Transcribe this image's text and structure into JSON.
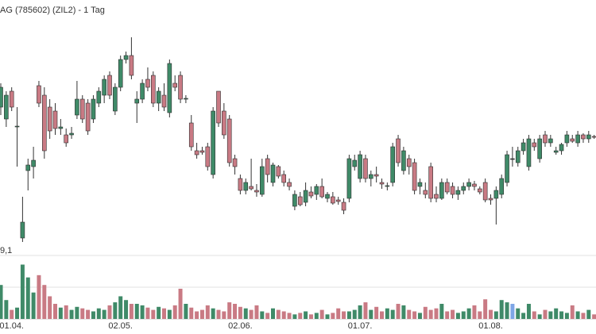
{
  "chart_data": {
    "type": "candlestick",
    "title": "AG (785602) (ZIL2) - 1 Tag",
    "volume_label": "9,1",
    "categories": [
      null,
      null,
      "01.04.",
      null,
      null,
      null,
      null,
      null,
      null,
      null,
      null,
      null,
      null,
      null,
      null,
      null,
      null,
      null,
      null,
      null,
      null,
      null,
      "02.05.",
      null,
      null,
      null,
      null,
      null,
      null,
      null,
      null,
      null,
      null,
      null,
      null,
      null,
      null,
      null,
      null,
      null,
      null,
      null,
      null,
      null,
      "02.06.",
      null,
      null,
      null,
      null,
      null,
      null,
      null,
      null,
      null,
      null,
      null,
      null,
      null,
      null,
      null,
      null,
      null,
      null,
      null,
      null,
      null,
      "01.07.",
      null,
      null,
      null,
      null,
      null,
      null,
      null,
      null,
      null,
      null,
      null,
      null,
      null,
      null,
      null,
      null,
      null,
      null,
      null,
      null,
      null,
      null,
      null,
      "01.08.",
      null,
      null,
      null,
      null,
      null,
      null,
      null,
      null,
      null,
      null,
      null,
      null,
      null,
      null,
      null,
      null,
      null,
      null,
      null
    ],
    "open": [
      185,
      170,
      205,
      160,
      20,
      105,
      110,
      212,
      200,
      185,
      180,
      158,
      150,
      150,
      175,
      195,
      190,
      170,
      190,
      200,
      225,
      180,
      210,
      245,
      250,
      190,
      195,
      220,
      225,
      190,
      200,
      178,
      215,
      225,
      195,
      165,
      130,
      130,
      135,
      100,
      205,
      180,
      170,
      120,
      95,
      80,
      85,
      80,
      75,
      120,
      90,
      110,
      100,
      90,
      60,
      72,
      65,
      78,
      75,
      85,
      70,
      72,
      68,
      65,
      70,
      110,
      95,
      120,
      95,
      100,
      90,
      85,
      90,
      145,
      105,
      120,
      115,
      85,
      80,
      110,
      75,
      70,
      90,
      85,
      75,
      80,
      85,
      88,
      82,
      90,
      70,
      70,
      75,
      90,
      120,
      115,
      130,
      110,
      140,
      120,
      150,
      140,
      128,
      130,
      140,
      145,
      140,
      150,
      145,
      148
    ],
    "high": [
      215,
      205,
      210,
      185,
      72,
      120,
      135,
      218,
      210,
      195,
      190,
      170,
      158,
      160,
      218,
      200,
      195,
      200,
      210,
      225,
      230,
      215,
      250,
      255,
      273,
      205,
      220,
      235,
      230,
      210,
      215,
      245,
      225,
      230,
      200,
      175,
      140,
      135,
      140,
      185,
      205,
      190,
      175,
      125,
      100,
      95,
      120,
      88,
      120,
      125,
      115,
      112,
      105,
      95,
      80,
      78,
      90,
      85,
      88,
      95,
      78,
      78,
      72,
      70,
      125,
      125,
      130,
      125,
      105,
      110,
      95,
      90,
      140,
      150,
      135,
      125,
      120,
      95,
      90,
      115,
      85,
      95,
      95,
      90,
      85,
      90,
      95,
      92,
      85,
      95,
      75,
      85,
      100,
      130,
      135,
      135,
      145,
      150,
      145,
      150,
      155,
      150,
      135,
      140,
      155,
      150,
      155,
      152,
      155,
      150
    ],
    "low": [
      175,
      160,
      180,
      110,
      15,
      80,
      95,
      185,
      120,
      145,
      150,
      150,
      135,
      145,
      170,
      165,
      150,
      165,
      185,
      190,
      195,
      175,
      205,
      240,
      220,
      165,
      190,
      205,
      185,
      180,
      180,
      172,
      205,
      190,
      190,
      130,
      120,
      125,
      105,
      95,
      160,
      145,
      110,
      100,
      75,
      75,
      80,
      72,
      72,
      90,
      85,
      95,
      85,
      80,
      55,
      60,
      60,
      70,
      68,
      70,
      65,
      62,
      62,
      50,
      65,
      105,
      90,
      90,
      85,
      90,
      82,
      80,
      85,
      110,
      100,
      100,
      75,
      75,
      70,
      65,
      65,
      68,
      75,
      70,
      68,
      75,
      80,
      80,
      75,
      65,
      62,
      37,
      70,
      85,
      110,
      110,
      125,
      105,
      130,
      115,
      135,
      135,
      125,
      125,
      135,
      140,
      135,
      140,
      140,
      145
    ],
    "close": [
      210,
      200,
      185,
      161,
      40,
      112,
      118,
      190,
      130,
      155,
      158,
      160,
      140,
      152,
      195,
      170,
      155,
      195,
      205,
      220,
      200,
      210,
      245,
      250,
      225,
      195,
      215,
      210,
      190,
      205,
      185,
      240,
      210,
      195,
      196,
      135,
      125,
      128,
      110,
      180,
      165,
      150,
      115,
      110,
      80,
      90,
      82,
      78,
      110,
      100,
      112,
      98,
      90,
      85,
      75,
      62,
      80,
      73,
      85,
      72,
      75,
      64,
      66,
      55,
      120,
      118,
      125,
      95,
      100,
      98,
      88,
      86,
      135,
      115,
      130,
      110,
      80,
      90,
      75,
      70,
      70,
      90,
      78,
      75,
      80,
      85,
      90,
      85,
      78,
      68,
      68,
      80,
      95,
      125,
      120,
      130,
      140,
      145,
      135,
      145,
      140,
      145,
      130,
      138,
      150,
      142,
      150,
      145,
      150,
      147
    ],
    "volume": [
      45,
      25,
      12,
      15,
      72,
      55,
      35,
      58,
      45,
      30,
      20,
      15,
      18,
      12,
      16,
      14,
      12,
      10,
      14,
      12,
      18,
      22,
      30,
      25,
      20,
      20,
      18,
      15,
      12,
      16,
      14,
      12,
      18,
      40,
      20,
      15,
      10,
      12,
      18,
      14,
      12,
      10,
      22,
      20,
      16,
      14,
      12,
      18,
      10,
      8,
      14,
      12,
      10,
      8,
      6,
      8,
      10,
      6,
      8,
      12,
      6,
      8,
      14,
      10,
      10,
      12,
      18,
      22,
      12,
      16,
      10,
      14,
      12,
      20,
      18,
      12,
      10,
      8,
      16,
      12,
      14,
      20,
      10,
      12,
      8,
      10,
      14,
      18,
      10,
      26,
      12,
      10,
      25,
      22,
      20,
      14,
      8,
      20,
      10,
      6,
      12,
      10,
      14,
      10,
      8,
      18,
      10,
      8,
      12,
      6
    ],
    "up_color": "#3f8a68",
    "down_color": "#c97a84",
    "flat_color": "#7ea6e6",
    "ylim": [
      0,
      280
    ],
    "volume_ylim": [
      0,
      82
    ]
  }
}
